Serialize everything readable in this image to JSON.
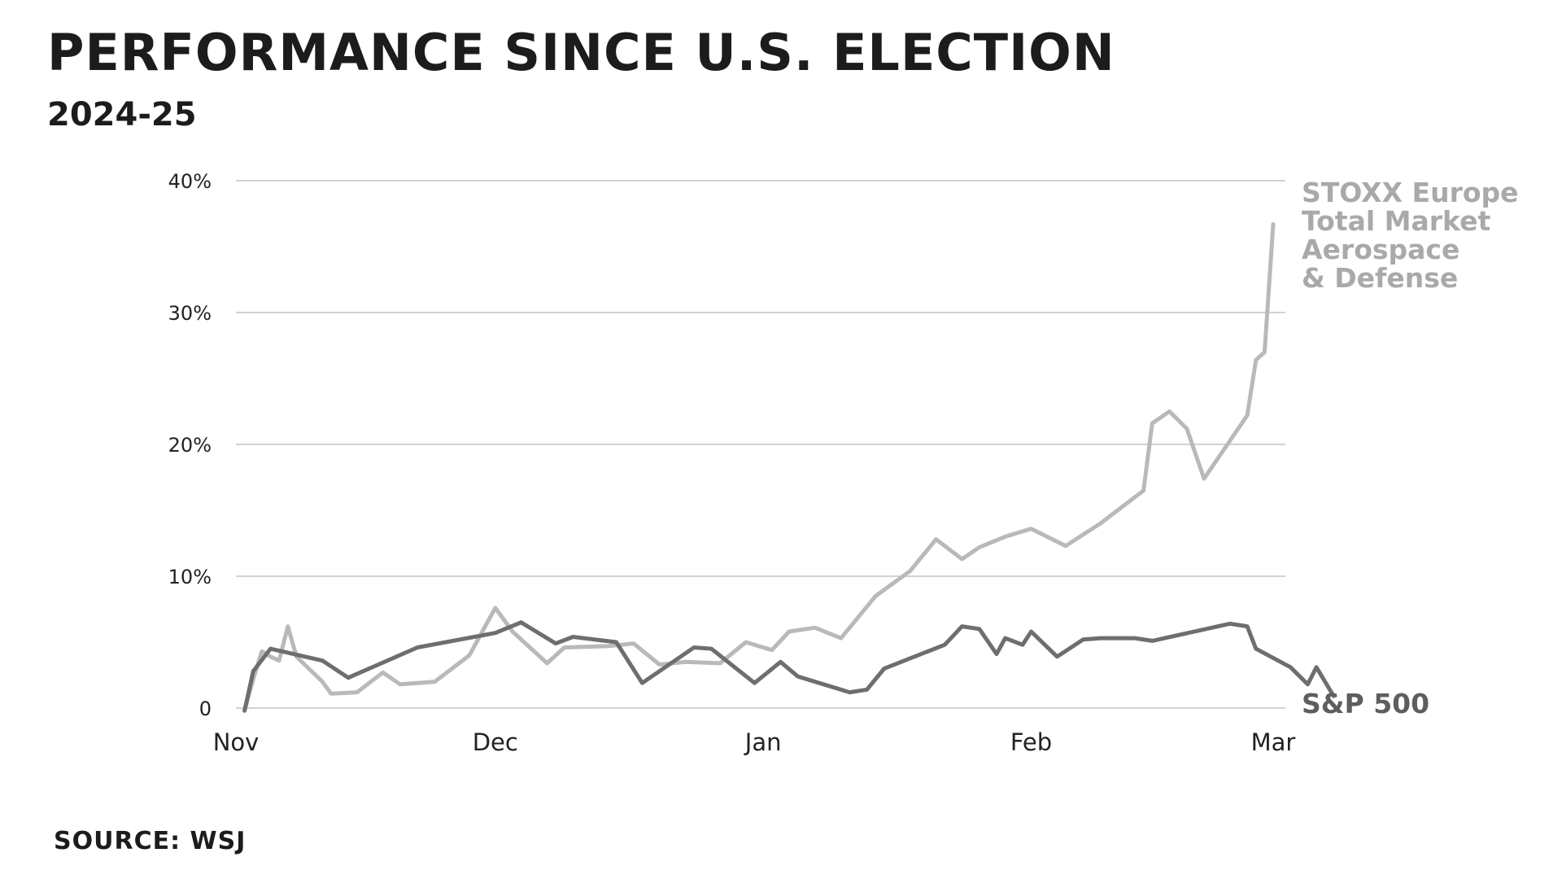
{
  "title": "PERFORMANCE SINCE U.S. ELECTION",
  "subtitle": "2024-25",
  "source": "SOURCE: WSJ",
  "chart_data": {
    "type": "line",
    "title": "PERFORMANCE SINCE U.S. ELECTION",
    "subtitle": "2024-25",
    "xlabel": "",
    "ylabel": "",
    "ylim": [
      0,
      40
    ],
    "y_ticks": [
      {
        "value": 0,
        "label": "0"
      },
      {
        "value": 10,
        "label": "10%"
      },
      {
        "value": 20,
        "label": "20%"
      },
      {
        "value": 30,
        "label": "30%"
      },
      {
        "value": 40,
        "label": "40%"
      }
    ],
    "x_ticks": [
      {
        "date": "2024-11-01",
        "label": "Nov"
      },
      {
        "date": "2024-12-01",
        "label": "Dec"
      },
      {
        "date": "2025-01-01",
        "label": "Jan"
      },
      {
        "date": "2025-02-01",
        "label": "Feb"
      },
      {
        "date": "2025-03-01",
        "label": "Mar"
      }
    ],
    "xlim": [
      "2024-11-01",
      "2025-03-01"
    ],
    "grid": true,
    "legend": "direct labels at right end of lines",
    "series": [
      {
        "name": "STOXX Europe Total Market Aerospace & Defense",
        "label_lines": [
          "STOXX Europe",
          "Total Market",
          "Aerospace",
          "& Defense"
        ],
        "color": "#b9b9b9",
        "points": [
          [
            "2024-11-02",
            -0.2
          ],
          [
            "2024-11-03",
            2.2
          ],
          [
            "2024-11-04",
            4.3
          ],
          [
            "2024-11-05",
            3.9
          ],
          [
            "2024-11-06",
            3.6
          ],
          [
            "2024-11-07",
            6.2
          ],
          [
            "2024-11-08",
            3.9
          ],
          [
            "2024-11-11",
            2.0
          ],
          [
            "2024-11-12",
            1.1
          ],
          [
            "2024-11-15",
            1.2
          ],
          [
            "2024-11-18",
            2.7
          ],
          [
            "2024-11-20",
            1.8
          ],
          [
            "2024-11-24",
            2.0
          ],
          [
            "2024-11-28",
            4.0
          ],
          [
            "2024-12-01",
            7.6
          ],
          [
            "2024-12-03",
            5.8
          ],
          [
            "2024-12-07",
            3.4
          ],
          [
            "2024-12-09",
            4.6
          ],
          [
            "2024-12-14",
            4.7
          ],
          [
            "2024-12-17",
            4.9
          ],
          [
            "2024-12-20",
            3.3
          ],
          [
            "2024-12-23",
            3.5
          ],
          [
            "2024-12-27",
            3.4
          ],
          [
            "2024-12-30",
            5.0
          ],
          [
            "2025-01-01",
            4.6
          ],
          [
            "2025-01-02",
            4.4
          ],
          [
            "2025-01-04",
            5.8
          ],
          [
            "2025-01-07",
            6.1
          ],
          [
            "2025-01-10",
            5.3
          ],
          [
            "2025-01-14",
            8.5
          ],
          [
            "2025-01-18",
            10.4
          ],
          [
            "2025-01-21",
            12.8
          ],
          [
            "2025-01-24",
            11.3
          ],
          [
            "2025-01-26",
            12.2
          ],
          [
            "2025-01-29",
            13.0
          ],
          [
            "2025-02-01",
            13.6
          ],
          [
            "2025-02-05",
            12.3
          ],
          [
            "2025-02-09",
            14.0
          ],
          [
            "2025-02-14",
            16.5
          ],
          [
            "2025-02-15",
            21.6
          ],
          [
            "2025-02-17",
            22.5
          ],
          [
            "2025-02-19",
            21.2
          ],
          [
            "2025-02-21",
            17.4
          ],
          [
            "2025-02-26",
            22.2
          ],
          [
            "2025-02-27",
            26.4
          ],
          [
            "2025-02-28",
            27.0
          ],
          [
            "2025-03-01",
            36.7
          ]
        ]
      },
      {
        "name": "S&P 500",
        "label_lines": [
          "S&P 500"
        ],
        "color": "#6e6e6e",
        "points": [
          [
            "2024-11-02",
            -0.2
          ],
          [
            "2024-11-03",
            2.8
          ],
          [
            "2024-11-05",
            4.5
          ],
          [
            "2024-11-11",
            3.6
          ],
          [
            "2024-11-14",
            2.3
          ],
          [
            "2024-11-22",
            4.6
          ],
          [
            "2024-12-01",
            5.7
          ],
          [
            "2024-12-04",
            6.5
          ],
          [
            "2024-12-08",
            4.9
          ],
          [
            "2024-12-10",
            5.4
          ],
          [
            "2024-12-15",
            5.0
          ],
          [
            "2024-12-18",
            1.9
          ],
          [
            "2024-12-24",
            4.6
          ],
          [
            "2024-12-26",
            4.5
          ],
          [
            "2024-12-31",
            1.9
          ],
          [
            "2025-01-03",
            3.5
          ],
          [
            "2025-01-05",
            2.4
          ],
          [
            "2025-01-11",
            1.2
          ],
          [
            "2025-01-13",
            1.4
          ],
          [
            "2025-01-15",
            3.0
          ],
          [
            "2025-01-22",
            4.8
          ],
          [
            "2025-01-24",
            6.2
          ],
          [
            "2025-01-26",
            6.0
          ],
          [
            "2025-01-28",
            4.1
          ],
          [
            "2025-01-29",
            5.3
          ],
          [
            "2025-01-31",
            4.8
          ],
          [
            "2025-02-01",
            5.8
          ],
          [
            "2025-02-04",
            3.9
          ],
          [
            "2025-02-07",
            5.2
          ],
          [
            "2025-02-09",
            5.3
          ],
          [
            "2025-02-13",
            5.3
          ],
          [
            "2025-02-15",
            5.1
          ],
          [
            "2025-02-24",
            6.4
          ],
          [
            "2025-02-26",
            6.2
          ],
          [
            "2025-02-27",
            4.5
          ],
          [
            "2025-03-03",
            3.1
          ],
          [
            "2025-03-05",
            1.8
          ],
          [
            "2025-03-06",
            3.1
          ],
          [
            "2025-03-08",
            0.9
          ]
        ]
      }
    ]
  }
}
